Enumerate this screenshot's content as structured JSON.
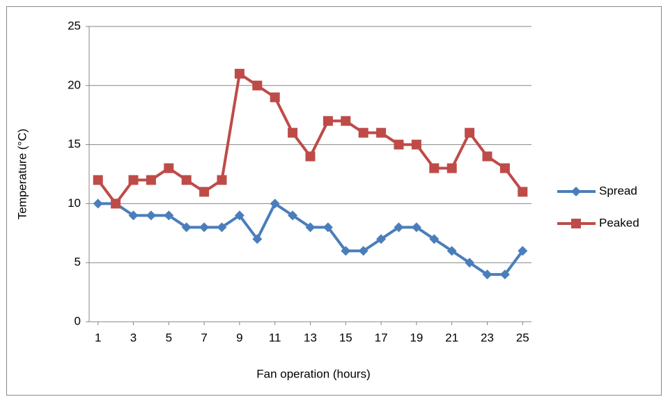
{
  "chart_data": {
    "type": "line",
    "xlabel": "Fan operation (hours)",
    "ylabel": "Temperature (°C)",
    "x": [
      1,
      2,
      3,
      4,
      5,
      6,
      7,
      8,
      9,
      10,
      11,
      12,
      13,
      14,
      15,
      16,
      17,
      18,
      19,
      20,
      21,
      22,
      23,
      24,
      25
    ],
    "xlim": [
      0.5,
      25.5
    ],
    "xticks": [
      1,
      3,
      5,
      7,
      9,
      11,
      13,
      15,
      17,
      19,
      21,
      23,
      25
    ],
    "ylim": [
      0,
      25
    ],
    "yticks": [
      0,
      5,
      10,
      15,
      20,
      25
    ],
    "grid": true,
    "legend": "right",
    "series": [
      {
        "name": "Spread",
        "color": "#4a7ebb",
        "marker": "diamond",
        "values": [
          10,
          10,
          9,
          9,
          9,
          8,
          8,
          8,
          9,
          7,
          10,
          9,
          8,
          8,
          6,
          6,
          7,
          8,
          8,
          7,
          6,
          5,
          4,
          4,
          6
        ]
      },
      {
        "name": "Peaked",
        "color": "#be4b48",
        "marker": "square",
        "values": [
          12,
          10,
          12,
          12,
          13,
          12,
          11,
          12,
          21,
          20,
          19,
          16,
          14,
          17,
          17,
          16,
          16,
          15,
          15,
          13,
          13,
          16,
          14,
          13,
          11
        ]
      }
    ]
  }
}
